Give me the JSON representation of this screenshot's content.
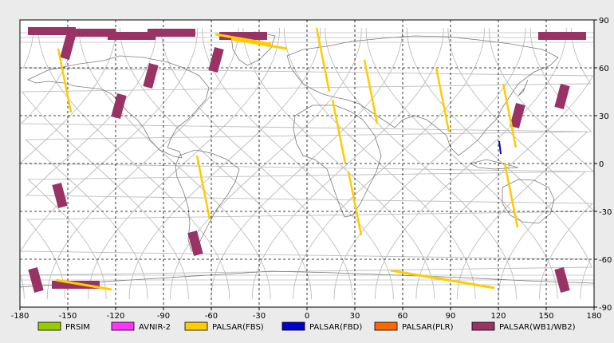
{
  "map": {
    "x_ticks": [
      "-180",
      "-150",
      "-120",
      "-90",
      "-60",
      "-30",
      "0",
      "30",
      "60",
      "90",
      "120",
      "150",
      "180"
    ],
    "y_ticks": [
      "90",
      "60",
      "30",
      "0",
      "-30",
      "-60",
      "-90"
    ],
    "lon_range": [
      -180,
      180
    ],
    "lat_range": [
      -90,
      90
    ],
    "grid": "dashed",
    "orbit_track_color": "#bdbdbd",
    "coastline_color": "#7a7a7a"
  },
  "legend": [
    {
      "label": "PRSIM",
      "color": "#99cc00"
    },
    {
      "label": "AVNIR-2",
      "color": "#ff33ff"
    },
    {
      "label": "PALSAR(FBS)",
      "color": "#ffcc00"
    },
    {
      "label": "PALSAR(FBD)",
      "color": "#0000cc"
    },
    {
      "label": "PALSAR(PLR)",
      "color": "#ff6600"
    },
    {
      "label": "PALSAR(WB1/WB2)",
      "color": "#993366"
    }
  ],
  "swaths": {
    "wb": [
      {
        "lon": -160,
        "lat": 83
      },
      {
        "lon": -135,
        "lat": 82
      },
      {
        "lon": -110,
        "lat": 80
      },
      {
        "lon": -85,
        "lat": 82
      },
      {
        "lon": -40,
        "lat": 80
      },
      {
        "lon": 160,
        "lat": 80
      },
      {
        "lon": -150,
        "lat": 73
      },
      {
        "lon": -98,
        "lat": 55
      },
      {
        "lon": -118,
        "lat": 36
      },
      {
        "lon": -155,
        "lat": -20
      },
      {
        "lon": -70,
        "lat": -50
      },
      {
        "lon": 132,
        "lat": 30
      },
      {
        "lon": -170,
        "lat": -73
      },
      {
        "lon": -145,
        "lat": -76
      },
      {
        "lon": 160,
        "lat": -73
      },
      {
        "lon": -57,
        "lat": 65
      },
      {
        "lon": 160,
        "lat": 42
      }
    ],
    "fbs": [
      {
        "lon": -30,
        "lat": 75
      },
      {
        "lon": -40,
        "lat": 78
      },
      {
        "lon": 10,
        "lat": 65
      },
      {
        "lon": 40,
        "lat": 45
      },
      {
        "lon": 20,
        "lat": 20
      },
      {
        "lon": 30,
        "lat": -25
      },
      {
        "lon": -65,
        "lat": -15
      },
      {
        "lon": 85,
        "lat": 40
      },
      {
        "lon": 127,
        "lat": 30
      },
      {
        "lon": 128,
        "lat": -20
      },
      {
        "lon": 100,
        "lat": -75
      },
      {
        "lon": 70,
        "lat": -70
      },
      {
        "lon": -152,
        "lat": 52
      },
      {
        "lon": -140,
        "lat": -76
      }
    ],
    "fbd": [
      {
        "lon": 121,
        "lat": 10
      }
    ]
  }
}
